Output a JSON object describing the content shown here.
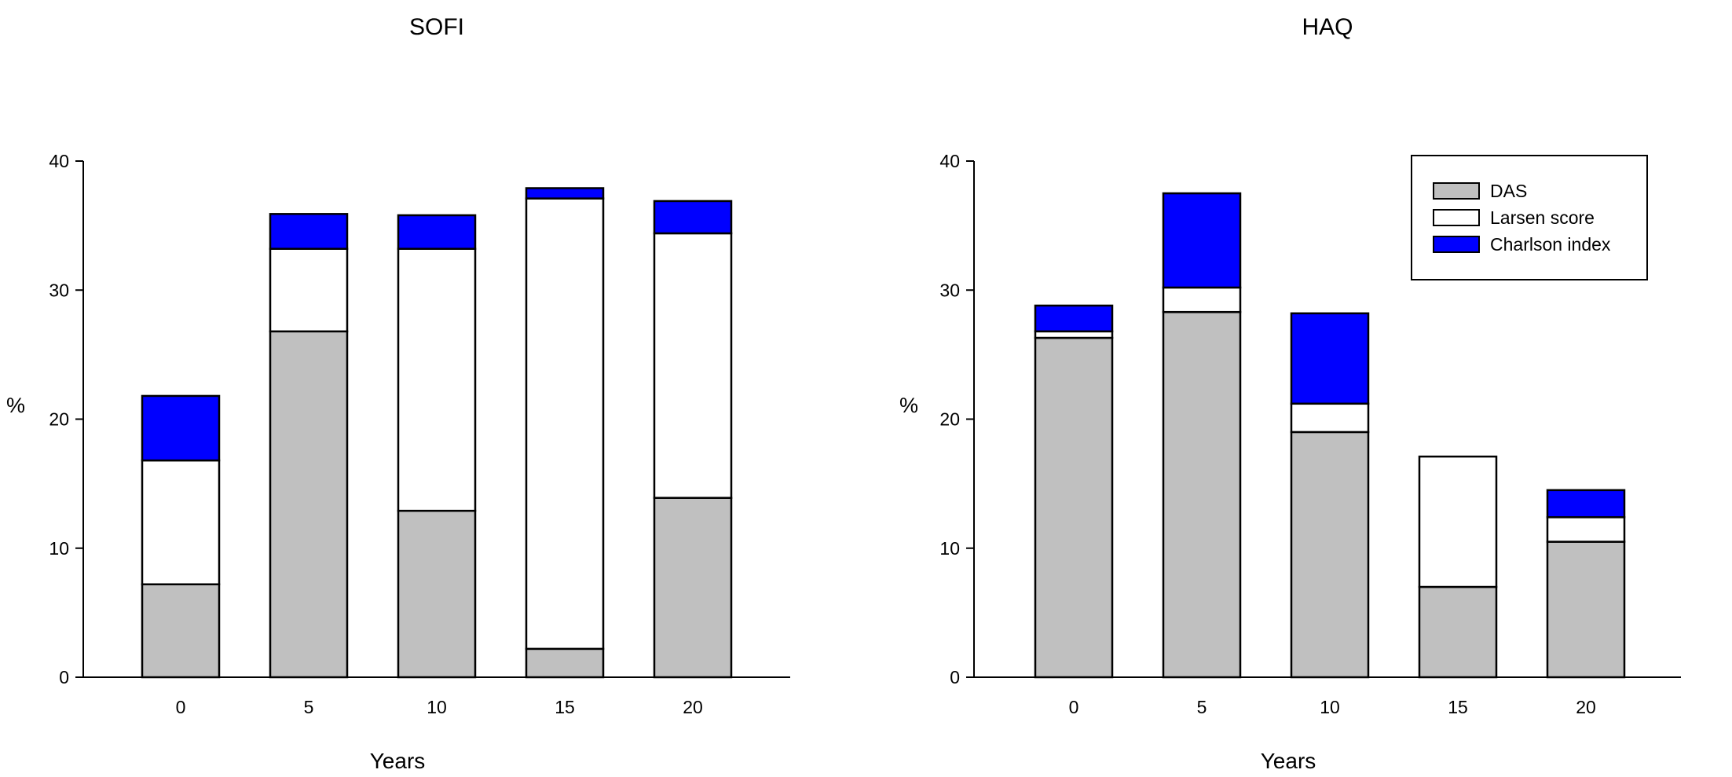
{
  "colors": {
    "DAS": "#c0c0c0",
    "Larsen score": "#ffffff",
    "Charlson index": "#0000ff",
    "stroke": "#000000"
  },
  "chart_data": [
    {
      "type": "bar",
      "stacked": true,
      "title": "SOFI",
      "xlabel": "Years",
      "ylabel": "%",
      "ylim": [
        0,
        40
      ],
      "yticks": [
        0,
        10,
        20,
        30,
        40
      ],
      "categories": [
        "0",
        "5",
        "10",
        "15",
        "20"
      ],
      "series": [
        {
          "name": "DAS",
          "values": [
            7.2,
            26.8,
            12.9,
            2.2,
            13.9
          ]
        },
        {
          "name": "Larsen score",
          "values": [
            9.6,
            6.4,
            20.3,
            34.9,
            20.5
          ]
        },
        {
          "name": "Charlson index",
          "values": [
            5.0,
            2.7,
            2.6,
            0.8,
            2.5
          ]
        }
      ],
      "legend": null,
      "grid": false
    },
    {
      "type": "bar",
      "stacked": true,
      "title": "HAQ",
      "xlabel": "Years",
      "ylabel": "%",
      "ylim": [
        0,
        40
      ],
      "yticks": [
        0,
        10,
        20,
        30,
        40
      ],
      "categories": [
        "0",
        "5",
        "10",
        "15",
        "20"
      ],
      "series": [
        {
          "name": "DAS",
          "values": [
            26.3,
            28.3,
            19.0,
            7.0,
            10.5
          ]
        },
        {
          "name": "Larsen score",
          "values": [
            0.5,
            1.9,
            2.2,
            10.1,
            1.9
          ]
        },
        {
          "name": "Charlson index",
          "values": [
            2.0,
            7.3,
            7.0,
            0.0,
            2.1
          ]
        }
      ],
      "legend": "top-right",
      "grid": false
    }
  ]
}
